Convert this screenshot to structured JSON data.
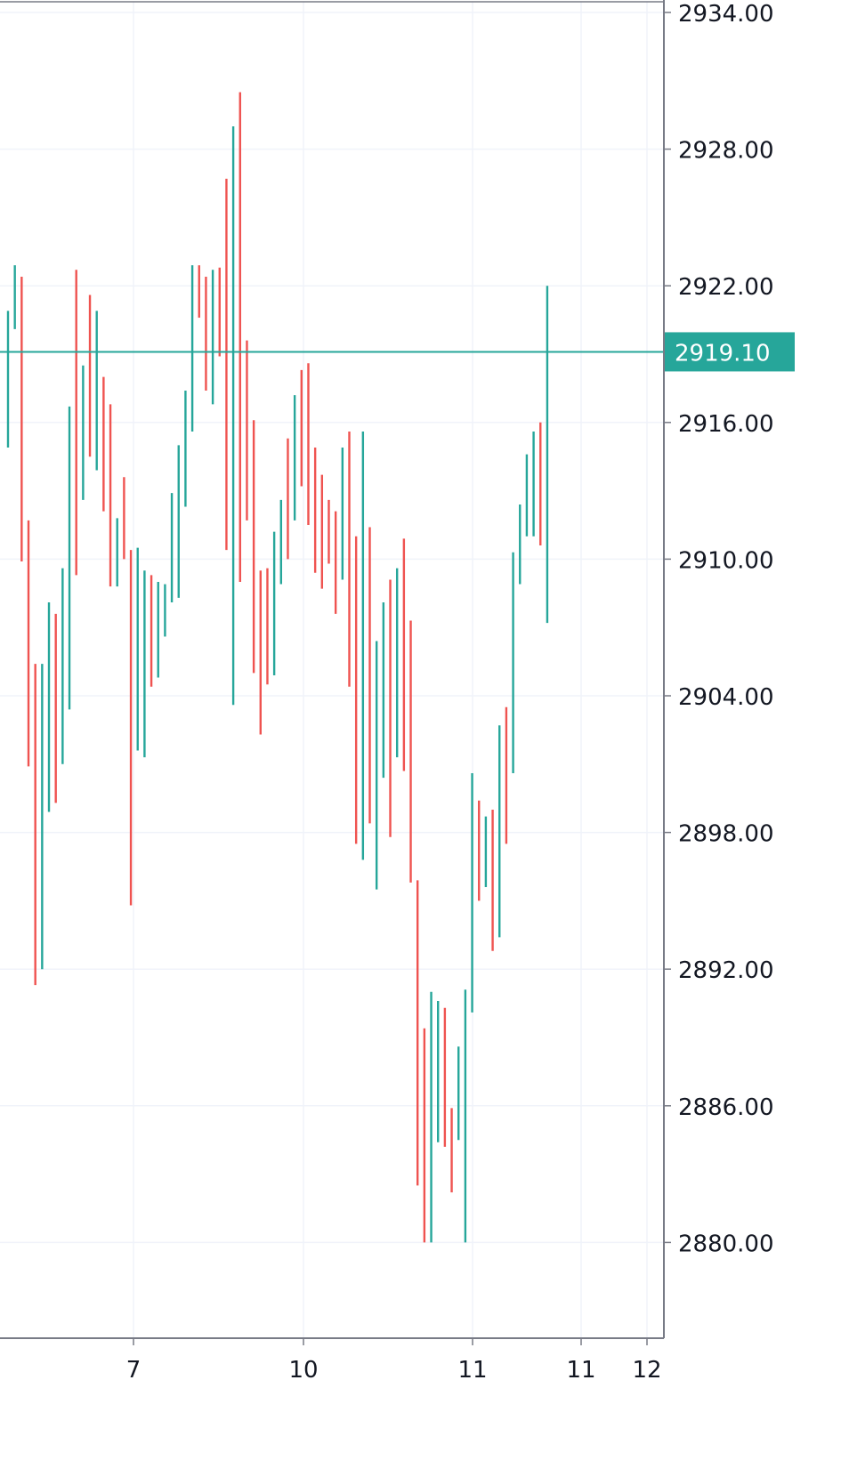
{
  "chart_data": {
    "type": "bar",
    "style": "range-bars",
    "x_tick_labels": [
      "7",
      "10",
      "11",
      "11",
      "12"
    ],
    "y_ticks": [
      "2934.00",
      "2928.00",
      "2922.00",
      "2916.00",
      "2910.00",
      "2904.00",
      "2898.00",
      "2892.00",
      "2886.00",
      "2880.00"
    ],
    "ylim": [
      2875.9,
      2934.6
    ],
    "grid": true,
    "last_price": {
      "value": 2919.1,
      "label": "2919.10"
    },
    "colors": {
      "up": "#26a69a",
      "down": "#ef5350",
      "grid": "#f0f3fa",
      "axis": "#787b86",
      "price_badge": "#26a69a",
      "price_badge_text": "#ffffff",
      "tick_text": "#131722"
    },
    "bars": [
      {
        "dir": "up",
        "high": 2920.9,
        "low": 2914.9
      },
      {
        "dir": "up",
        "high": 2922.9,
        "low": 2920.1
      },
      {
        "dir": "down",
        "high": 2922.4,
        "low": 2909.9
      },
      {
        "dir": "down",
        "high": 2911.7,
        "low": 2900.9
      },
      {
        "dir": "down",
        "high": 2905.4,
        "low": 2891.3
      },
      {
        "dir": "up",
        "high": 2905.4,
        "low": 2892.0
      },
      {
        "dir": "up",
        "high": 2908.1,
        "low": 2898.9
      },
      {
        "dir": "down",
        "high": 2907.6,
        "low": 2899.3
      },
      {
        "dir": "up",
        "high": 2909.6,
        "low": 2901.0
      },
      {
        "dir": "up",
        "high": 2916.7,
        "low": 2903.4
      },
      {
        "dir": "down",
        "high": 2922.7,
        "low": 2909.3
      },
      {
        "dir": "up",
        "high": 2918.5,
        "low": 2912.6
      },
      {
        "dir": "down",
        "high": 2921.6,
        "low": 2914.5
      },
      {
        "dir": "up",
        "high": 2920.9,
        "low": 2913.9
      },
      {
        "dir": "down",
        "high": 2918.0,
        "low": 2912.1
      },
      {
        "dir": "down",
        "high": 2916.8,
        "low": 2908.8
      },
      {
        "dir": "up",
        "high": 2911.8,
        "low": 2908.8
      },
      {
        "dir": "down",
        "high": 2913.6,
        "low": 2910.0
      },
      {
        "dir": "down",
        "high": 2910.4,
        "low": 2894.8
      },
      {
        "dir": "up",
        "high": 2910.5,
        "low": 2901.6
      },
      {
        "dir": "up",
        "high": 2909.5,
        "low": 2901.3
      },
      {
        "dir": "down",
        "high": 2909.3,
        "low": 2904.4
      },
      {
        "dir": "up",
        "high": 2909.0,
        "low": 2904.8
      },
      {
        "dir": "up",
        "high": 2908.9,
        "low": 2906.6
      },
      {
        "dir": "up",
        "high": 2912.9,
        "low": 2908.1
      },
      {
        "dir": "up",
        "high": 2915.0,
        "low": 2908.3
      },
      {
        "dir": "up",
        "high": 2917.4,
        "low": 2912.3
      },
      {
        "dir": "up",
        "high": 2922.9,
        "low": 2915.6
      },
      {
        "dir": "down",
        "high": 2922.9,
        "low": 2920.6
      },
      {
        "dir": "down",
        "high": 2922.4,
        "low": 2917.4
      },
      {
        "dir": "up",
        "high": 2922.7,
        "low": 2916.8
      },
      {
        "dir": "down",
        "high": 2922.8,
        "low": 2918.9
      },
      {
        "dir": "down",
        "high": 2926.7,
        "low": 2910.4
      },
      {
        "dir": "up",
        "high": 2929.0,
        "low": 2903.6
      },
      {
        "dir": "down",
        "high": 2930.5,
        "low": 2909.0
      },
      {
        "dir": "down",
        "high": 2919.6,
        "low": 2911.7
      },
      {
        "dir": "down",
        "high": 2916.1,
        "low": 2905.0
      },
      {
        "dir": "down",
        "high": 2909.5,
        "low": 2902.3
      },
      {
        "dir": "down",
        "high": 2909.6,
        "low": 2904.5
      },
      {
        "dir": "up",
        "high": 2911.2,
        "low": 2904.9
      },
      {
        "dir": "up",
        "high": 2912.6,
        "low": 2908.9
      },
      {
        "dir": "down",
        "high": 2915.3,
        "low": 2910.0
      },
      {
        "dir": "up",
        "high": 2917.2,
        "low": 2911.7
      },
      {
        "dir": "down",
        "high": 2918.3,
        "low": 2913.2
      },
      {
        "dir": "down",
        "high": 2918.6,
        "low": 2911.5
      },
      {
        "dir": "down",
        "high": 2914.9,
        "low": 2909.4
      },
      {
        "dir": "down",
        "high": 2913.7,
        "low": 2908.7
      },
      {
        "dir": "down",
        "high": 2912.6,
        "low": 2909.8
      },
      {
        "dir": "down",
        "high": 2912.1,
        "low": 2907.6
      },
      {
        "dir": "up",
        "high": 2914.9,
        "low": 2909.1
      },
      {
        "dir": "down",
        "high": 2915.6,
        "low": 2904.4
      },
      {
        "dir": "down",
        "high": 2911.0,
        "low": 2897.5
      },
      {
        "dir": "up",
        "high": 2915.6,
        "low": 2896.8
      },
      {
        "dir": "down",
        "high": 2911.4,
        "low": 2898.4
      },
      {
        "dir": "up",
        "high": 2906.4,
        "low": 2895.5
      },
      {
        "dir": "up",
        "high": 2908.1,
        "low": 2900.4
      },
      {
        "dir": "down",
        "high": 2909.1,
        "low": 2897.8
      },
      {
        "dir": "up",
        "high": 2909.6,
        "low": 2901.3
      },
      {
        "dir": "down",
        "high": 2910.9,
        "low": 2900.7
      },
      {
        "dir": "down",
        "high": 2907.3,
        "low": 2895.8
      },
      {
        "dir": "down",
        "high": 2895.9,
        "low": 2882.5
      },
      {
        "dir": "down",
        "high": 2889.4,
        "low": 2880.0
      },
      {
        "dir": "up",
        "high": 2891.0,
        "low": 2880.0
      },
      {
        "dir": "up",
        "high": 2890.6,
        "low": 2884.4
      },
      {
        "dir": "down",
        "high": 2890.3,
        "low": 2884.2
      },
      {
        "dir": "down",
        "high": 2885.9,
        "low": 2882.2
      },
      {
        "dir": "up",
        "high": 2888.6,
        "low": 2884.5
      },
      {
        "dir": "up",
        "high": 2891.1,
        "low": 2880.0
      },
      {
        "dir": "up",
        "high": 2900.6,
        "low": 2890.1
      },
      {
        "dir": "down",
        "high": 2899.4,
        "low": 2895.0
      },
      {
        "dir": "up",
        "high": 2898.7,
        "low": 2895.6
      },
      {
        "dir": "down",
        "high": 2899.0,
        "low": 2892.8
      },
      {
        "dir": "up",
        "high": 2902.7,
        "low": 2893.4
      },
      {
        "dir": "down",
        "high": 2903.5,
        "low": 2897.5
      },
      {
        "dir": "up",
        "high": 2910.3,
        "low": 2900.6
      },
      {
        "dir": "up",
        "high": 2912.4,
        "low": 2908.9
      },
      {
        "dir": "up",
        "high": 2914.6,
        "low": 2911.0
      },
      {
        "dir": "up",
        "high": 2915.6,
        "low": 2911.0
      },
      {
        "dir": "down",
        "high": 2916.0,
        "low": 2910.6
      },
      {
        "dir": "up",
        "high": 2922.0,
        "low": 2907.2
      }
    ]
  }
}
